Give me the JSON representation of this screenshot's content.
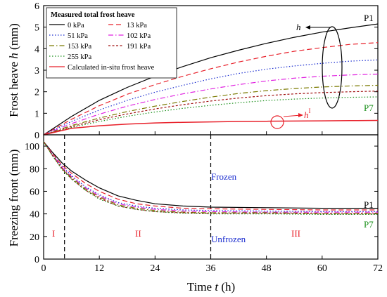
{
  "chart_data": [
    {
      "type": "line",
      "ylabel": "Frost heave h (mm)",
      "ylabel_parts": {
        "text": "Frost heave ",
        "var": "h",
        "unit": " (mm)"
      },
      "xlim": [
        0,
        72
      ],
      "ylim": [
        0,
        6
      ],
      "yticks": [
        "0",
        "1",
        "2",
        "3",
        "4",
        "5",
        "6"
      ],
      "legend_title": "Measured total frost heave",
      "legend_position": "top-left",
      "x": [
        0,
        6,
        12,
        18,
        24,
        30,
        36,
        42,
        48,
        54,
        60,
        66,
        72
      ],
      "series": [
        {
          "name": "0 kPa",
          "color": "#000000",
          "dash": "solid",
          "values": [
            0,
            0.85,
            1.6,
            2.2,
            2.72,
            3.17,
            3.58,
            3.93,
            4.25,
            4.53,
            4.77,
            4.97,
            5.15
          ]
        },
        {
          "name": "13 kPa",
          "color": "#e8202a",
          "dash": "dash",
          "values": [
            0,
            0.72,
            1.35,
            1.88,
            2.33,
            2.72,
            3.07,
            3.38,
            3.65,
            3.88,
            4.05,
            4.2,
            4.28
          ]
        },
        {
          "name": "51 kPa",
          "color": "#1a2ccf",
          "dash": "dot",
          "values": [
            0,
            0.62,
            1.15,
            1.6,
            1.98,
            2.3,
            2.6,
            2.85,
            3.05,
            3.2,
            3.32,
            3.42,
            3.48
          ]
        },
        {
          "name": "102 kPa",
          "color": "#e020e0",
          "dash": "dashdot",
          "values": [
            0,
            0.52,
            0.96,
            1.33,
            1.64,
            1.9,
            2.13,
            2.33,
            2.5,
            2.63,
            2.72,
            2.78,
            2.82
          ]
        },
        {
          "name": "153 kPa",
          "color": "#7a7a00",
          "dash": "dashdot",
          "values": [
            0,
            0.43,
            0.78,
            1.08,
            1.33,
            1.55,
            1.75,
            1.92,
            2.05,
            2.15,
            2.22,
            2.27,
            2.3
          ]
        },
        {
          "name": "191 kPa",
          "color": "#a01010",
          "dash": "shortdash",
          "values": [
            0,
            0.38,
            0.7,
            0.97,
            1.2,
            1.4,
            1.57,
            1.71,
            1.82,
            1.9,
            1.96,
            2.0,
            2.03
          ]
        },
        {
          "name": "255 kPa",
          "color": "#1a8f1a",
          "dash": "dot",
          "values": [
            0,
            0.34,
            0.62,
            0.86,
            1.06,
            1.23,
            1.37,
            1.49,
            1.59,
            1.66,
            1.71,
            1.74,
            1.76
          ]
        },
        {
          "name": "Calculated in-situ frost heave",
          "color": "#e8202a",
          "dash": "solid",
          "values": [
            0,
            0.3,
            0.42,
            0.5,
            0.55,
            0.58,
            0.6,
            0.62,
            0.63,
            0.64,
            0.65,
            0.66,
            0.67
          ]
        }
      ],
      "annotations": {
        "p1": "P1",
        "p7": "P7",
        "h_label": "h",
        "h1_label": "h",
        "h1_superscript": "I"
      }
    },
    {
      "type": "line",
      "xlabel": "Time t (h)",
      "xlabel_parts": {
        "text": "Time ",
        "var": "t",
        "unit": " (h)"
      },
      "ylabel": "Freezing front (mm)",
      "xlim": [
        0,
        72
      ],
      "ylim": [
        0,
        110
      ],
      "xticks": [
        "0",
        "12",
        "24",
        "36",
        "48",
        "60",
        "72"
      ],
      "yticks": [
        "0",
        "20",
        "40",
        "60",
        "80",
        "100"
      ],
      "x": [
        0,
        2,
        4,
        6,
        9,
        12,
        16,
        20,
        24,
        30,
        36,
        48,
        60,
        72
      ],
      "series": [
        {
          "values": [
            104,
            94,
            85,
            78,
            70,
            63,
            56,
            52,
            49,
            47,
            46,
            45.5,
            45,
            45
          ]
        },
        {
          "values": [
            104,
            93,
            83,
            76,
            67,
            60,
            53,
            49,
            47,
            45,
            44.5,
            44,
            43.5,
            43.5
          ]
        },
        {
          "values": [
            104,
            92,
            82,
            74,
            64,
            57,
            50,
            47,
            45,
            43.5,
            43,
            42.5,
            42,
            42
          ]
        },
        {
          "values": [
            104,
            92,
            81,
            73,
            63,
            56,
            49,
            46,
            44,
            42.5,
            42,
            41.5,
            41.5,
            41.5
          ]
        },
        {
          "values": [
            104,
            91,
            80,
            72,
            62,
            55,
            48,
            45,
            43,
            41.5,
            41,
            41,
            40.5,
            40.5
          ]
        },
        {
          "values": [
            104,
            91,
            80,
            71,
            61,
            54,
            47,
            44,
            42,
            41,
            40.5,
            40.5,
            40,
            40
          ]
        },
        {
          "values": [
            104,
            91,
            79,
            71,
            61,
            53,
            47,
            44,
            42,
            40.5,
            40,
            40,
            39.5,
            39.5
          ]
        }
      ],
      "vlines": [
        4.5,
        36
      ],
      "annotations": {
        "frozen": "Frozen",
        "unfrozen": "Unfrozen",
        "stage1": "I",
        "stage2": "II",
        "stage3": "III",
        "p1": "P1",
        "p7": "P7"
      }
    }
  ]
}
